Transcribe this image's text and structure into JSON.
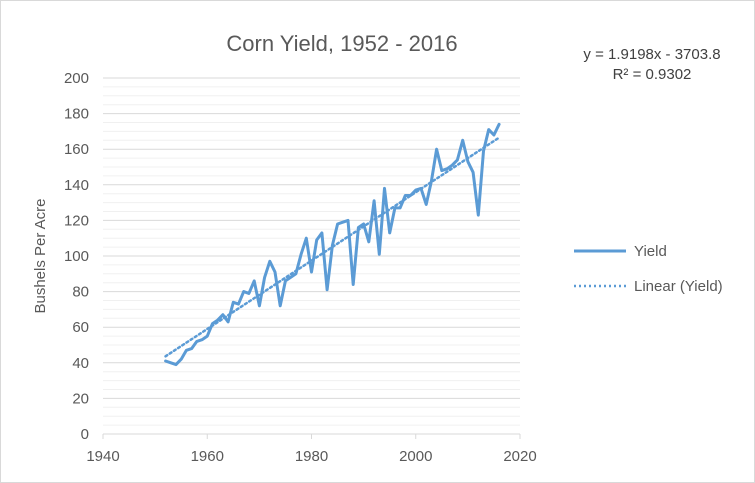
{
  "chart_data": {
    "type": "line",
    "title": "Corn Yield, 1952 - 2016",
    "xlabel": "",
    "ylabel": "Bushels Per Acre",
    "xlim": [
      1940,
      2020
    ],
    "ylim": [
      0,
      200
    ],
    "x_ticks": [
      1940,
      1960,
      1980,
      2000,
      2020
    ],
    "y_ticks": [
      0,
      20,
      40,
      60,
      80,
      100,
      120,
      140,
      160,
      180,
      200
    ],
    "grid": true,
    "legend_position": "right",
    "trendline": {
      "name": "Linear (Yield)",
      "equation": "y = 1.9198x - 3703.8",
      "r_squared": "R² = 0.9302",
      "slope": 1.9198,
      "intercept": -3703.8,
      "x_start": 1952,
      "x_end": 2016
    },
    "series": [
      {
        "name": "Yield",
        "color": "#5b9bd5",
        "x": [
          1952,
          1953,
          1954,
          1955,
          1956,
          1957,
          1958,
          1959,
          1960,
          1961,
          1962,
          1963,
          1964,
          1965,
          1966,
          1967,
          1968,
          1969,
          1970,
          1971,
          1972,
          1973,
          1974,
          1975,
          1976,
          1977,
          1978,
          1979,
          1980,
          1981,
          1982,
          1983,
          1984,
          1985,
          1986,
          1987,
          1988,
          1989,
          1990,
          1991,
          1992,
          1993,
          1994,
          1995,
          1996,
          1997,
          1998,
          1999,
          2000,
          2001,
          2002,
          2003,
          2004,
          2005,
          2006,
          2007,
          2008,
          2009,
          2010,
          2011,
          2012,
          2013,
          2014,
          2015,
          2016
        ],
        "values": [
          41,
          40,
          39,
          42,
          47,
          48,
          52,
          53,
          55,
          62,
          64,
          67,
          63,
          74,
          73,
          80,
          79,
          86,
          72,
          88,
          97,
          91,
          72,
          86,
          88,
          90,
          101,
          110,
          91,
          109,
          113,
          81,
          106,
          118,
          119,
          120,
          84,
          116,
          118,
          108,
          131,
          101,
          138,
          113,
          127,
          127,
          134,
          134,
          137,
          138,
          129,
          142,
          160,
          148,
          149,
          151,
          154,
          165,
          153,
          147,
          123,
          159,
          171,
          168,
          174
        ]
      }
    ]
  },
  "colors": {
    "series": "#5b9bd5",
    "trendline": "#5b9bd5",
    "axis": "#d9d9d9",
    "grid": "#d9d9d9",
    "text": "#595959"
  }
}
